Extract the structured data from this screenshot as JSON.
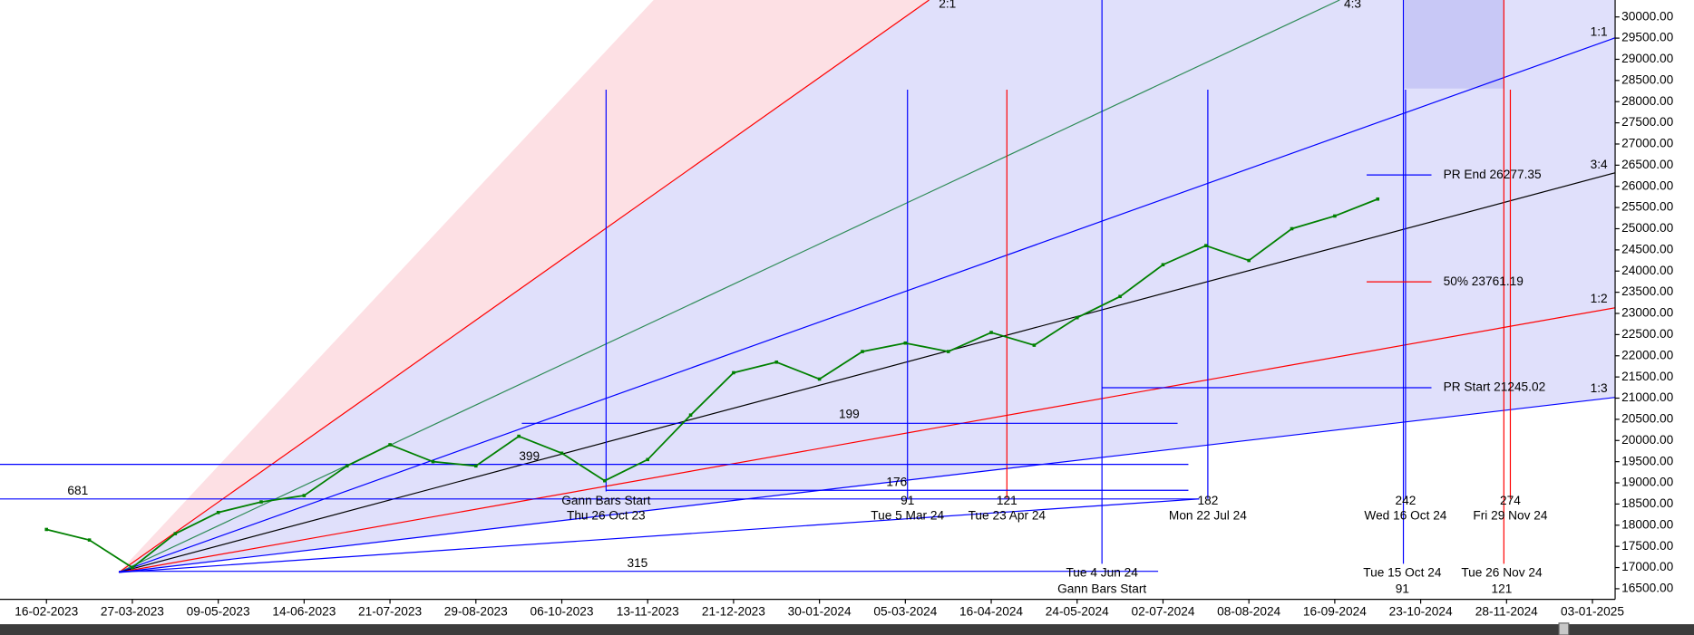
{
  "chart_data": {
    "type": "line",
    "categories": [
      "16-02-2023",
      null,
      "27-03-2023",
      null,
      "09-05-2023",
      null,
      "14-06-2023",
      null,
      "21-07-2023",
      null,
      "29-08-2023",
      null,
      "06-10-2023",
      null,
      "13-11-2023",
      null,
      "21-12-2023",
      null,
      "30-01-2024",
      null,
      "05-03-2024",
      null,
      "16-04-2024",
      null,
      "24-05-2024",
      null,
      "02-07-2024",
      null,
      "08-08-2024",
      null,
      "16-09-2024",
      null,
      "23-10-2024",
      null,
      "28-11-2024",
      null,
      "03-01-2025"
    ],
    "series": [
      {
        "color": "#008000",
        "values": [
          17900,
          17650,
          17000,
          17800,
          18300,
          18550,
          18700,
          19400,
          19900,
          19500,
          19400,
          20100,
          19700,
          19050,
          19550,
          20600,
          21600,
          21850,
          21450,
          22100,
          22300,
          22100,
          22550,
          22250,
          22900,
          23400,
          24150,
          24600,
          24250,
          25000,
          25300,
          25700,
          null,
          null,
          null,
          null,
          null
        ]
      }
    ],
    "ylim": [
      16300,
      30400
    ],
    "yticks": [
      {
        "value": 16500,
        "label": "16500.00"
      },
      {
        "value": 17000,
        "label": "17000.00"
      },
      {
        "value": 17500,
        "label": "17500.00"
      },
      {
        "value": 18000,
        "label": "18000.00"
      },
      {
        "value": 18500,
        "label": "18500.00"
      },
      {
        "value": 19000,
        "label": "19000.00"
      },
      {
        "value": 19500,
        "label": "19500.00"
      },
      {
        "value": 20000,
        "label": "20000.00"
      },
      {
        "value": 20500,
        "label": "20500.00"
      },
      {
        "value": 21000,
        "label": "21000.00"
      },
      {
        "value": 21500,
        "label": "21500.00"
      },
      {
        "value": 22000,
        "label": "22000.00"
      },
      {
        "value": 22500,
        "label": "22500.00"
      },
      {
        "value": 23000,
        "label": "23000.00"
      },
      {
        "value": 23500,
        "label": "23500.00"
      },
      {
        "value": 24000,
        "label": "24000.00"
      },
      {
        "value": 24500,
        "label": "24500.00"
      },
      {
        "value": 25000,
        "label": "25000.00"
      },
      {
        "value": 25500,
        "label": "25500.00"
      },
      {
        "value": 26000,
        "label": "26000.00"
      },
      {
        "value": 26500,
        "label": "26500.00"
      },
      {
        "value": 27000,
        "label": "27000.00"
      },
      {
        "value": 27500,
        "label": "27500.00"
      },
      {
        "value": 28000,
        "label": "28000.00"
      },
      {
        "value": 28500,
        "label": "28500.00"
      },
      {
        "value": 29000,
        "label": "29000.00"
      },
      {
        "value": 29500,
        "label": "29500.00"
      },
      {
        "value": 30000,
        "label": "30000.00"
      }
    ],
    "annotations": [
      "2:1",
      "4:3",
      "1:1",
      "3:4",
      "1:2",
      "1:3",
      "PR End 26277.35",
      "50% 23761.19",
      "PR Start 21245.02",
      "199",
      "399",
      "176",
      "681",
      "315",
      "Gann Bars Start",
      "Thu 26 Oct 23",
      "91",
      "Tue 5 Mar 24",
      "121",
      "Tue 23 Apr 24",
      "182",
      "Mon 22 Jul 24",
      "242",
      "Wed 16 Oct 24",
      "274",
      "Fri 29 Nov 24",
      "Tue 4 Jun 24",
      "Gann Bars Start",
      "Tue 15 Oct 24",
      "91",
      "Tue 26 Nov 24",
      "121"
    ]
  }
}
